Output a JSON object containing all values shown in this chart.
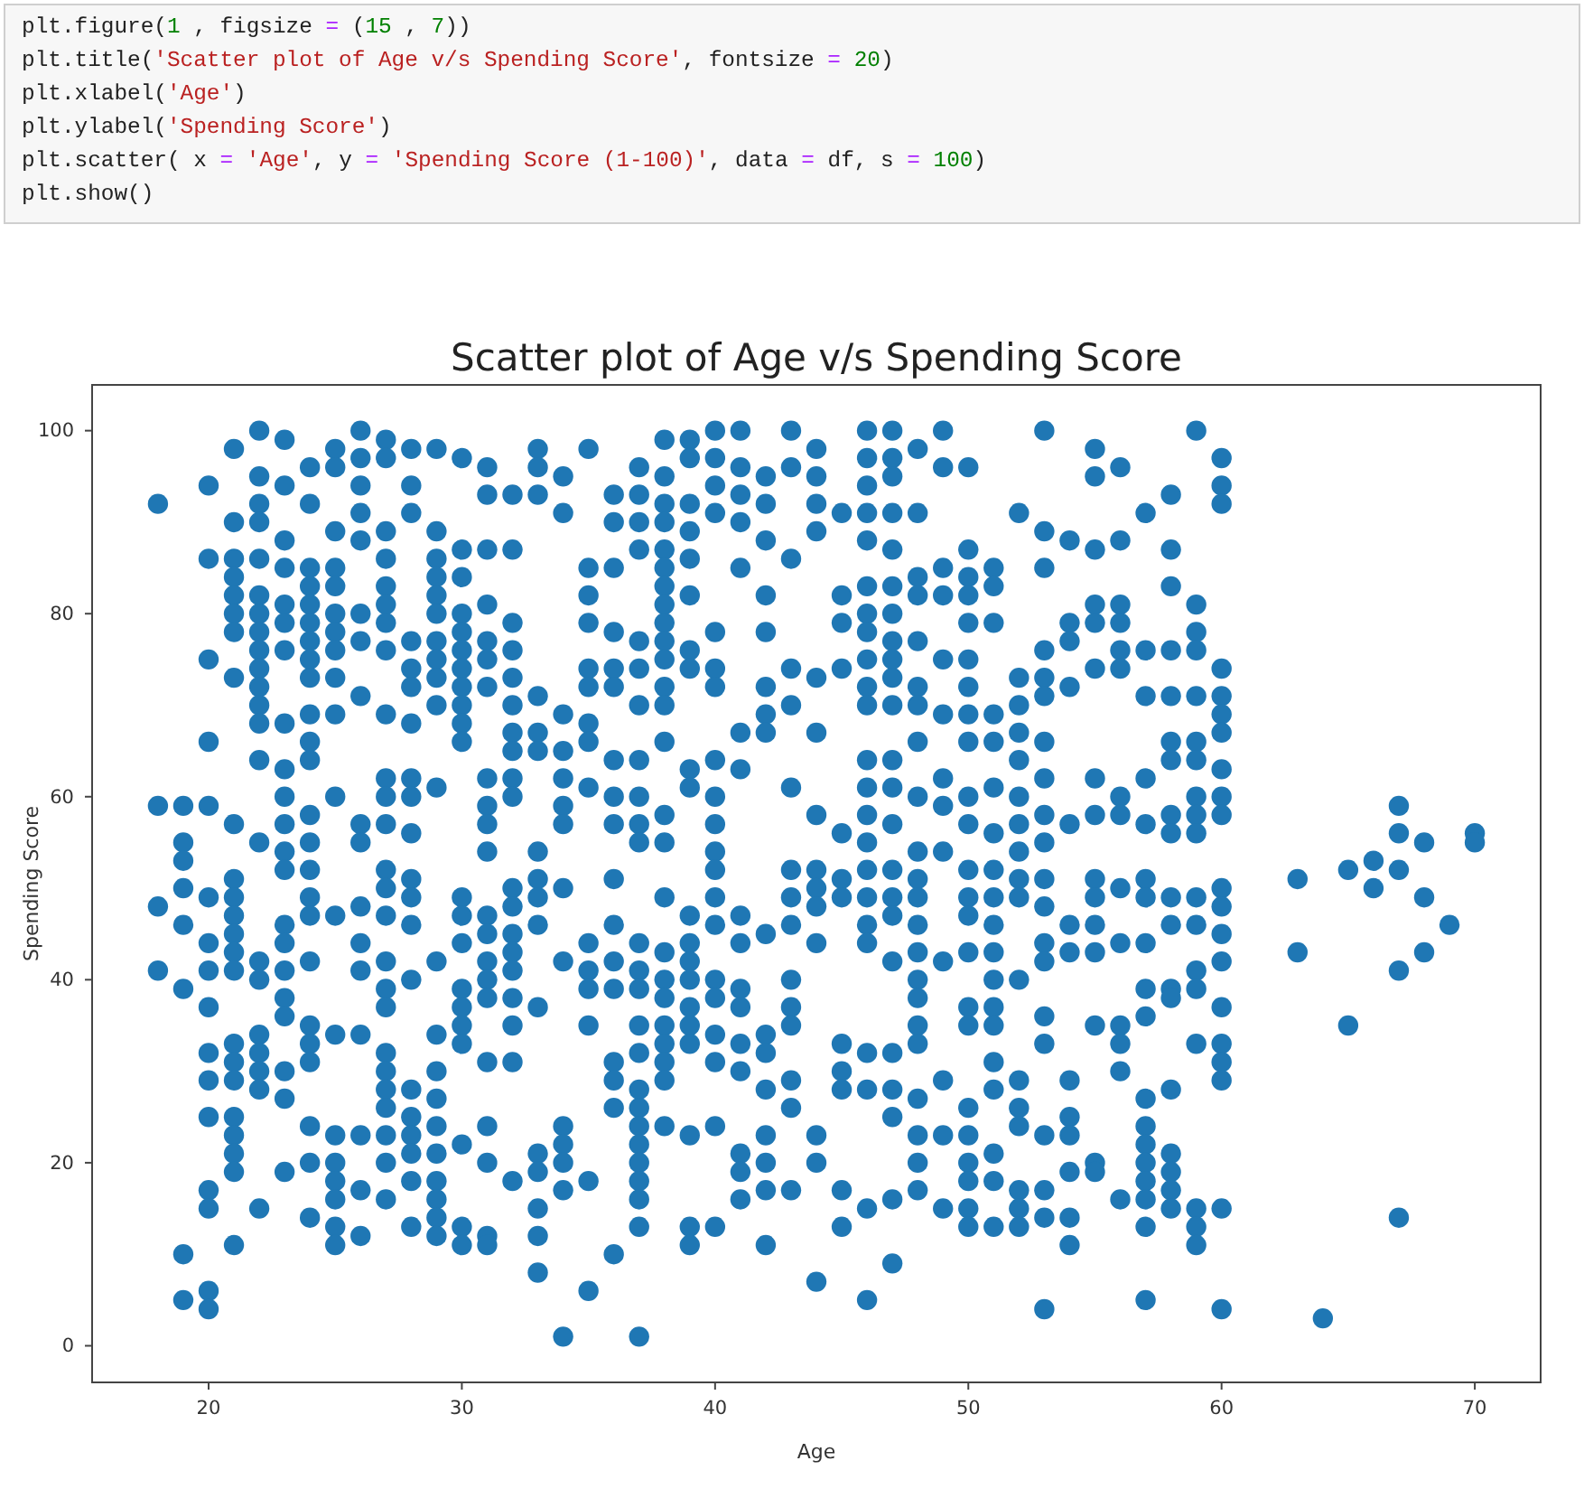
{
  "chart_data": {
    "type": "scatter",
    "title": "Scatter plot of Age v/s Spending Score",
    "xlabel": "Age",
    "ylabel": "Spending Score",
    "annotations": [
      "plt.figure(1 , figsize = (15 , 7))",
      "plt.title('Scatter plot of Age v/s Spending Score', fontsize = 20)",
      "plt.xlabel('Age')",
      "plt.ylabel('Spending Score')",
      "plt.scatter( x = 'Age', y = 'Spending Score (1-100)', data = df, s = 100)",
      "plt.show()"
    ],
    "color": "#1f77b4",
    "marker": "circle",
    "xlim": [
      15.4,
      72.6
    ],
    "ylim": [
      -4,
      105
    ],
    "xticks": [
      20,
      30,
      40,
      50,
      60,
      70
    ],
    "yticks": [
      0,
      20,
      40,
      60,
      80,
      100
    ],
    "x": [
      18,
      18,
      18,
      18,
      19,
      19,
      19,
      19,
      19,
      19,
      19,
      19,
      20,
      20,
      20,
      20,
      20,
      20,
      20,
      20,
      20,
      20,
      20,
      20,
      20,
      20,
      20,
      20,
      21,
      21,
      21,
      21,
      21,
      21,
      21,
      21,
      21,
      21,
      21,
      21,
      21,
      21,
      21,
      21,
      21,
      21,
      21,
      21,
      21,
      21,
      21,
      22,
      22,
      22,
      22,
      22,
      22,
      22,
      22,
      22,
      22,
      22,
      22,
      22,
      22,
      22,
      22,
      22,
      22,
      22,
      22,
      22,
      22,
      23,
      23,
      23,
      23,
      23,
      23,
      23,
      23,
      23,
      23,
      23,
      23,
      23,
      23,
      23,
      23,
      23,
      23,
      23,
      23,
      23,
      24,
      24,
      24,
      24,
      24,
      24,
      24,
      24,
      24,
      24,
      24,
      24,
      24,
      24,
      24,
      24,
      24,
      24,
      24,
      24,
      24,
      24,
      24,
      24,
      25,
      25,
      25,
      25,
      25,
      25,
      25,
      25,
      25,
      25,
      25,
      25,
      25,
      25,
      25,
      25,
      25,
      25,
      25,
      26,
      26,
      26,
      26,
      26,
      26,
      26,
      26,
      26,
      26,
      26,
      26,
      26,
      26,
      26,
      26,
      26,
      27,
      27,
      27,
      27,
      27,
      27,
      27,
      27,
      27,
      27,
      27,
      27,
      27,
      27,
      27,
      27,
      27,
      27,
      27,
      27,
      27,
      27,
      27,
      27,
      27,
      28,
      28,
      28,
      28,
      28,
      28,
      28,
      28,
      28,
      28,
      28,
      28,
      28,
      28,
      28,
      28,
      28,
      28,
      28,
      28,
      29,
      29,
      29,
      29,
      29,
      29,
      29,
      29,
      29,
      29,
      29,
      29,
      29,
      29,
      29,
      29,
      29,
      29,
      29,
      29,
      29,
      30,
      30,
      30,
      30,
      30,
      30,
      30,
      30,
      30,
      30,
      30,
      30,
      30,
      30,
      30,
      30,
      30,
      30,
      30,
      30,
      30,
      31,
      31,
      31,
      31,
      31,
      31,
      31,
      31,
      31,
      31,
      31,
      31,
      31,
      31,
      31,
      31,
      31,
      31,
      31,
      31,
      31,
      32,
      32,
      32,
      32,
      32,
      32,
      32,
      32,
      32,
      32,
      32,
      32,
      32,
      32,
      32,
      32,
      32,
      32,
      32,
      33,
      33,
      33,
      33,
      33,
      33,
      33,
      33,
      33,
      33,
      33,
      33,
      33,
      33,
      33,
      33,
      34,
      34,
      34,
      34,
      34,
      34,
      34,
      34,
      34,
      34,
      34,
      34,
      34,
      34,
      35,
      35,
      35,
      35,
      35,
      35,
      35,
      35,
      35,
      35,
      35,
      35,
      35,
      35,
      35,
      36,
      36,
      36,
      36,
      36,
      36,
      36,
      36,
      36,
      36,
      36,
      36,
      36,
      36,
      36,
      36,
      36,
      37,
      37,
      37,
      37,
      37,
      37,
      37,
      37,
      37,
      37,
      37,
      37,
      37,
      37,
      37,
      37,
      37,
      37,
      37,
      37,
      37,
      37,
      37,
      37,
      37,
      38,
      38,
      38,
      38,
      38,
      38,
      38,
      38,
      38,
      38,
      38,
      38,
      38,
      38,
      38,
      38,
      38,
      38,
      38,
      38,
      38,
      38,
      38,
      38,
      38,
      39,
      39,
      39,
      39,
      39,
      39,
      39,
      39,
      39,
      39,
      39,
      39,
      39,
      39,
      39,
      39,
      39,
      39,
      39,
      39,
      40,
      40,
      40,
      40,
      40,
      40,
      40,
      40,
      40,
      40,
      40,
      40,
      40,
      40,
      40,
      40,
      40,
      40,
      40,
      40,
      41,
      41,
      41,
      41,
      41,
      41,
      41,
      41,
      41,
      41,
      41,
      41,
      41,
      41,
      41,
      41,
      42,
      42,
      42,
      42,
      42,
      42,
      42,
      42,
      42,
      42,
      42,
      42,
      42,
      42,
      42,
      42,
      43,
      43,
      43,
      43,
      43,
      43,
      43,
      43,
      43,
      43,
      43,
      43,
      43,
      43,
      43,
      44,
      44,
      44,
      44,
      44,
      44,
      44,
      44,
      44,
      44,
      44,
      44,
      44,
      44,
      45,
      45,
      45,
      45,
      45,
      45,
      45,
      45,
      45,
      45,
      45,
      45,
      46,
      46,
      46,
      46,
      46,
      46,
      46,
      46,
      46,
      46,
      46,
      46,
      46,
      46,
      46,
      46,
      46,
      46,
      46,
      46,
      46,
      46,
      46,
      47,
      47,
      47,
      47,
      47,
      47,
      47,
      47,
      47,
      47,
      47,
      47,
      47,
      47,
      47,
      47,
      47,
      47,
      47,
      47,
      47,
      47,
      47,
      48,
      48,
      48,
      48,
      48,
      48,
      48,
      48,
      48,
      48,
      48,
      48,
      48,
      48,
      48,
      48,
      48,
      48,
      48,
      48,
      48,
      48,
      49,
      49,
      49,
      49,
      49,
      49,
      49,
      49,
      49,
      49,
      49,
      49,
      49,
      50,
      50,
      50,
      50,
      50,
      50,
      50,
      50,
      50,
      50,
      50,
      50,
      50,
      50,
      50,
      50,
      50,
      50,
      50,
      50,
      50,
      50,
      50,
      51,
      51,
      51,
      51,
      51,
      51,
      51,
      51,
      51,
      51,
      51,
      51,
      51,
      51,
      51,
      51,
      51,
      51,
      51,
      52,
      52,
      52,
      52,
      52,
      52,
      52,
      52,
      52,
      52,
      52,
      52,
      52,
      52,
      52,
      52,
      52,
      53,
      53,
      53,
      53,
      53,
      53,
      53,
      53,
      53,
      53,
      53,
      53,
      53,
      53,
      53,
      53,
      53,
      53,
      53,
      53,
      54,
      54,
      54,
      54,
      54,
      54,
      54,
      54,
      54,
      54,
      54,
      54,
      54,
      55,
      55,
      55,
      55,
      55,
      55,
      55,
      55,
      55,
      55,
      55,
      55,
      55,
      55,
      55,
      56,
      56,
      56,
      56,
      56,
      56,
      56,
      56,
      56,
      56,
      56,
      56,
      56,
      56,
      57,
      57,
      57,
      57,
      57,
      57,
      57,
      57,
      57,
      57,
      57,
      57,
      57,
      57,
      57,
      57,
      57,
      57,
      58,
      58,
      58,
      58,
      58,
      58,
      58,
      58,
      58,
      58,
      58,
      58,
      58,
      58,
      58,
      58,
      58,
      58,
      59,
      59,
      59,
      59,
      59,
      59,
      59,
      59,
      59,
      59,
      59,
      59,
      59,
      59,
      59,
      59,
      59,
      59,
      60,
      60,
      60,
      60,
      60,
      60,
      60,
      60,
      60,
      60,
      60,
      60,
      60,
      60,
      60,
      60,
      60,
      60,
      60,
      60,
      63,
      63,
      64,
      65,
      65,
      66,
      66,
      67,
      67,
      67,
      67,
      67,
      68,
      68,
      68,
      69,
      70,
      70
    ],
    "values": [
      92,
      59,
      48,
      41,
      59,
      55,
      53,
      50,
      46,
      39,
      10,
      5,
      94,
      86,
      75,
      66,
      59,
      49,
      44,
      41,
      37,
      32,
      29,
      25,
      17,
      15,
      6,
      4,
      98,
      90,
      86,
      84,
      82,
      80,
      78,
      73,
      57,
      51,
      49,
      47,
      45,
      43,
      41,
      33,
      31,
      29,
      25,
      23,
      21,
      19,
      11,
      100,
      95,
      92,
      90,
      86,
      82,
      80,
      78,
      76,
      74,
      72,
      70,
      68,
      64,
      55,
      42,
      40,
      34,
      32,
      30,
      28,
      15,
      99,
      94,
      88,
      85,
      81,
      79,
      76,
      68,
      63,
      60,
      57,
      54,
      52,
      46,
      44,
      41,
      38,
      36,
      30,
      27,
      19,
      96,
      92,
      85,
      83,
      81,
      79,
      77,
      75,
      73,
      69,
      66,
      64,
      58,
      55,
      52,
      49,
      47,
      42,
      35,
      33,
      31,
      24,
      20,
      14,
      98,
      96,
      89,
      85,
      83,
      80,
      78,
      76,
      73,
      69,
      60,
      47,
      34,
      23,
      20,
      18,
      16,
      13,
      11,
      100,
      97,
      94,
      91,
      88,
      80,
      77,
      71,
      57,
      55,
      48,
      44,
      41,
      34,
      23,
      17,
      12,
      99,
      97,
      89,
      86,
      83,
      81,
      79,
      76,
      69,
      62,
      60,
      57,
      52,
      50,
      47,
      42,
      39,
      37,
      32,
      30,
      28,
      26,
      23,
      20,
      16,
      98,
      94,
      91,
      77,
      74,
      72,
      68,
      62,
      60,
      56,
      51,
      49,
      46,
      40,
      28,
      25,
      23,
      21,
      18,
      13,
      98,
      89,
      86,
      84,
      82,
      80,
      77,
      75,
      73,
      70,
      61,
      42,
      34,
      30,
      27,
      24,
      21,
      18,
      16,
      14,
      12,
      97,
      87,
      84,
      80,
      78,
      76,
      74,
      72,
      70,
      68,
      66,
      49,
      47,
      44,
      39,
      37,
      35,
      33,
      22,
      13,
      11,
      96,
      93,
      87,
      81,
      77,
      75,
      72,
      62,
      59,
      57,
      54,
      47,
      45,
      42,
      40,
      38,
      31,
      24,
      20,
      12,
      11,
      93,
      87,
      79,
      76,
      73,
      70,
      67,
      65,
      62,
      60,
      50,
      48,
      45,
      43,
      41,
      38,
      35,
      31,
      18,
      98,
      96,
      93,
      71,
      67,
      65,
      54,
      51,
      49,
      46,
      37,
      21,
      19,
      15,
      12,
      8,
      95,
      91,
      69,
      65,
      62,
      59,
      57,
      50,
      42,
      24,
      22,
      20,
      17,
      1,
      98,
      85,
      82,
      79,
      74,
      72,
      68,
      66,
      61,
      44,
      41,
      39,
      35,
      18,
      6,
      93,
      90,
      85,
      78,
      74,
      72,
      64,
      60,
      57,
      51,
      46,
      42,
      39,
      31,
      29,
      26,
      10,
      96,
      93,
      90,
      87,
      77,
      74,
      70,
      64,
      60,
      57,
      55,
      44,
      41,
      39,
      35,
      32,
      28,
      26,
      24,
      22,
      20,
      18,
      16,
      13,
      1,
      99,
      95,
      92,
      90,
      87,
      85,
      83,
      81,
      79,
      77,
      75,
      72,
      70,
      66,
      58,
      55,
      49,
      43,
      40,
      38,
      35,
      33,
      31,
      29,
      24,
      99,
      97,
      92,
      89,
      86,
      82,
      76,
      74,
      63,
      61,
      47,
      44,
      42,
      40,
      37,
      35,
      33,
      23,
      13,
      11,
      100,
      97,
      94,
      91,
      78,
      74,
      72,
      64,
      60,
      57,
      54,
      52,
      49,
      46,
      40,
      38,
      34,
      31,
      24,
      13,
      100,
      96,
      93,
      90,
      85,
      67,
      63,
      47,
      44,
      39,
      37,
      33,
      30,
      21,
      19,
      16,
      95,
      92,
      88,
      82,
      78,
      72,
      69,
      67,
      45,
      34,
      32,
      28,
      23,
      20,
      17,
      11,
      100,
      96,
      86,
      74,
      70,
      61,
      52,
      49,
      46,
      40,
      37,
      35,
      29,
      26,
      17,
      98,
      95,
      92,
      89,
      73,
      67,
      58,
      52,
      50,
      48,
      44,
      23,
      20,
      7,
      91,
      82,
      79,
      74,
      56,
      51,
      49,
      33,
      30,
      28,
      17,
      13,
      100,
      97,
      94,
      91,
      88,
      83,
      80,
      78,
      75,
      72,
      70,
      64,
      61,
      58,
      55,
      52,
      49,
      46,
      44,
      32,
      28,
      15,
      5,
      100,
      97,
      95,
      91,
      87,
      83,
      80,
      77,
      75,
      73,
      70,
      64,
      61,
      57,
      52,
      49,
      47,
      42,
      32,
      28,
      25,
      16,
      9,
      98,
      91,
      84,
      82,
      77,
      72,
      70,
      66,
      60,
      54,
      51,
      49,
      46,
      43,
      40,
      38,
      35,
      33,
      27,
      23,
      20,
      17,
      100,
      96,
      85,
      82,
      75,
      69,
      62,
      59,
      54,
      42,
      29,
      23,
      15,
      96,
      87,
      84,
      82,
      79,
      75,
      72,
      69,
      66,
      60,
      57,
      52,
      49,
      47,
      43,
      37,
      35,
      26,
      23,
      20,
      18,
      15,
      13,
      85,
      83,
      79,
      69,
      66,
      61,
      56,
      52,
      49,
      46,
      43,
      40,
      37,
      35,
      31,
      28,
      21,
      18,
      13,
      91,
      73,
      70,
      67,
      64,
      60,
      57,
      54,
      51,
      49,
      40,
      29,
      26,
      24,
      17,
      15,
      13,
      100,
      89,
      85,
      76,
      73,
      71,
      66,
      62,
      58,
      55,
      51,
      48,
      44,
      42,
      36,
      33,
      23,
      17,
      14,
      4,
      88,
      79,
      77,
      72,
      57,
      46,
      43,
      29,
      25,
      23,
      19,
      14,
      11,
      98,
      95,
      87,
      81,
      79,
      74,
      62,
      58,
      51,
      49,
      46,
      43,
      35,
      20,
      19,
      96,
      88,
      81,
      79,
      76,
      74,
      60,
      58,
      50,
      44,
      35,
      33,
      30,
      16,
      91,
      76,
      71,
      62,
      57,
      51,
      49,
      44,
      39,
      36,
      27,
      24,
      22,
      20,
      18,
      16,
      13,
      5,
      93,
      87,
      83,
      76,
      71,
      66,
      64,
      58,
      56,
      49,
      46,
      39,
      38,
      28,
      21,
      19,
      17,
      15,
      100,
      81,
      78,
      76,
      71,
      66,
      64,
      60,
      58,
      56,
      49,
      46,
      41,
      39,
      33,
      15,
      13,
      11,
      97,
      94,
      92,
      74,
      71,
      69,
      67,
      63,
      60,
      58,
      50,
      48,
      45,
      42,
      37,
      33,
      31,
      29,
      15,
      4,
      51,
      43,
      3,
      52,
      35,
      53,
      50,
      59,
      56,
      52,
      41,
      14,
      55,
      49,
      43,
      46,
      56,
      55
    ]
  }
}
